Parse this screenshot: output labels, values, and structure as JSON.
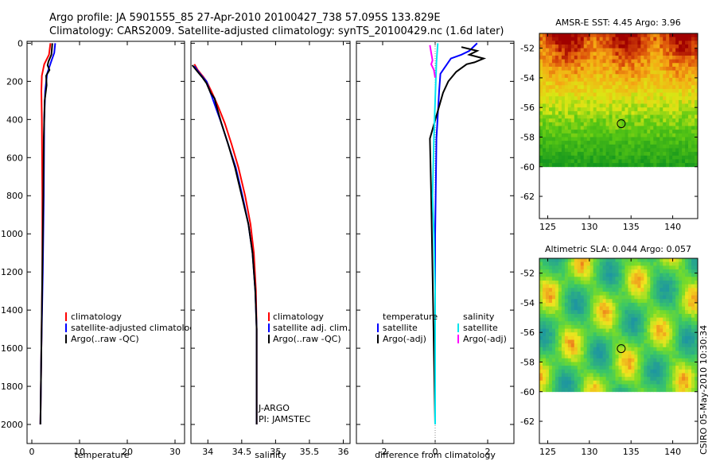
{
  "header": {
    "line1": "Argo profile: JA 5901555_85 27-Apr-2010 20100427_738 57.095S 133.829E",
    "line2": "Climatology: CARS2009. Satellite-adjusted climatology: synTS_20100429.nc (1.6d later)"
  },
  "credit": "CSIRO 05-May-2010 10:30:34",
  "colors": {
    "red": "#ff0000",
    "blue": "#0000ff",
    "black": "#000000",
    "cyan": "#00e5ee",
    "magenta": "#ff00ff"
  },
  "chart_data": [
    {
      "type": "line",
      "id": "temperature",
      "xlabel": "temperature",
      "xlim": [
        -1,
        32
      ],
      "ylim": [
        2100,
        -10
      ],
      "xticks": [
        0,
        10,
        20,
        30
      ],
      "xtick_labels": [
        "0",
        "10",
        "20",
        "30"
      ],
      "yticks": [
        0,
        200,
        400,
        600,
        800,
        1000,
        1200,
        1400,
        1600,
        1800,
        2000
      ],
      "ytick_labels": [
        "0",
        "200",
        "400",
        "600",
        "800",
        "1000",
        "1200",
        "1400",
        "1600",
        "1800",
        "2000"
      ],
      "legend": [
        "climatology",
        "satellite-adjusted climatology",
        "Argo(..raw -QC)"
      ],
      "series": [
        {
          "name": "climatology",
          "color": "red",
          "points": [
            [
              3.9,
              0
            ],
            [
              3.6,
              60
            ],
            [
              2.6,
              110
            ],
            [
              2.1,
              170
            ],
            [
              2.0,
              250
            ],
            [
              2.1,
              400
            ],
            [
              2.2,
              800
            ],
            [
              2.2,
              1200
            ],
            [
              2.0,
              1600
            ],
            [
              1.8,
              2000
            ]
          ]
        },
        {
          "name": "satellite-adjusted climatology",
          "color": "blue",
          "points": [
            [
              4.9,
              0
            ],
            [
              4.7,
              50
            ],
            [
              4.0,
              100
            ],
            [
              3.2,
              160
            ],
            [
              2.8,
              250
            ],
            [
              2.6,
              400
            ],
            [
              2.5,
              800
            ],
            [
              2.3,
              1200
            ],
            [
              2.0,
              1600
            ],
            [
              1.8,
              2000
            ]
          ]
        },
        {
          "name": "Argo(..raw -QC)",
          "color": "black",
          "points": [
            [
              4.3,
              0
            ],
            [
              4.1,
              60
            ],
            [
              3.5,
              95
            ],
            [
              3.3,
              115
            ],
            [
              3.7,
              140
            ],
            [
              3.0,
              170
            ],
            [
              3.1,
              220
            ],
            [
              2.7,
              300
            ],
            [
              2.5,
              500
            ],
            [
              2.4,
              800
            ],
            [
              2.2,
              1200
            ],
            [
              2.0,
              1600
            ],
            [
              1.8,
              2000
            ]
          ]
        }
      ]
    },
    {
      "type": "line",
      "id": "salinity",
      "xlabel": "salinity",
      "xlim": [
        33.75,
        36.1
      ],
      "ylim": [
        2100,
        -10
      ],
      "xticks": [
        34,
        34.5,
        35,
        35.5,
        36
      ],
      "xtick_labels": [
        "34",
        "34.5",
        "35",
        "35.5",
        "36"
      ],
      "legend": [
        "climatology",
        "satellite adj. clim.",
        "Argo(..raw -QC)"
      ],
      "annotations": [
        "J-ARGO",
        "PI: JAMSTEC"
      ],
      "series": [
        {
          "name": "climatology",
          "color": "red",
          "points": [
            [
              33.8,
              110
            ],
            [
              33.85,
              140
            ],
            [
              33.93,
              175
            ],
            [
              33.98,
              200
            ],
            [
              34.05,
              250
            ],
            [
              34.15,
              330
            ],
            [
              34.25,
              420
            ],
            [
              34.35,
              530
            ],
            [
              34.45,
              650
            ],
            [
              34.55,
              800
            ],
            [
              34.63,
              950
            ],
            [
              34.68,
              1100
            ],
            [
              34.71,
              1300
            ],
            [
              34.72,
              1500
            ],
            [
              34.72,
              1700
            ],
            [
              34.72,
              2000
            ]
          ]
        },
        {
          "name": "satellite adj. clim.",
          "color": "blue",
          "points": [
            [
              33.8,
              120
            ],
            [
              33.86,
              150
            ],
            [
              33.93,
              180
            ],
            [
              33.98,
              200
            ],
            [
              34.03,
              250
            ],
            [
              34.11,
              330
            ],
            [
              34.2,
              420
            ],
            [
              34.3,
              530
            ],
            [
              34.41,
              650
            ],
            [
              34.51,
              800
            ],
            [
              34.6,
              950
            ],
            [
              34.66,
              1100
            ],
            [
              34.7,
              1300
            ],
            [
              34.72,
              1500
            ],
            [
              34.72,
              1700
            ],
            [
              34.72,
              2000
            ]
          ]
        },
        {
          "name": "Argo(..raw -QC)",
          "color": "black",
          "points": [
            [
              33.77,
              115
            ],
            [
              33.85,
              150
            ],
            [
              33.92,
              180
            ],
            [
              33.98,
              210
            ],
            [
              34.04,
              260
            ],
            [
              34.1,
              290
            ],
            [
              34.12,
              320
            ],
            [
              34.2,
              420
            ],
            [
              34.3,
              530
            ],
            [
              34.4,
              650
            ],
            [
              34.5,
              800
            ],
            [
              34.6,
              950
            ],
            [
              34.66,
              1100
            ],
            [
              34.7,
              1300
            ],
            [
              34.72,
              1500
            ],
            [
              34.72,
              1700
            ],
            [
              34.72,
              2000
            ]
          ]
        }
      ]
    },
    {
      "type": "line",
      "id": "difference",
      "xlabel": "difference from climatology",
      "xlim": [
        -3,
        3
      ],
      "ylim": [
        2100,
        -10
      ],
      "xticks": [
        -2,
        0,
        2
      ],
      "xtick_labels": [
        "-2",
        "0",
        "2"
      ],
      "legend_headers": [
        "temperature",
        "salinity"
      ],
      "legend": [
        "satellite",
        "Argo(-adj)",
        "satellite",
        "Argo(-adj)"
      ],
      "series": [
        {
          "name": "temperature satellite",
          "color": "blue",
          "points": [
            [
              1.6,
              0
            ],
            [
              1.3,
              40
            ],
            [
              1.0,
              60
            ],
            [
              0.6,
              80
            ],
            [
              0.4,
              120
            ],
            [
              0.2,
              160
            ],
            [
              0.15,
              250
            ],
            [
              0.05,
              500
            ],
            [
              0.0,
              1000
            ],
            [
              0.0,
              2000
            ]
          ]
        },
        {
          "name": "temperature Argo(-adj)",
          "color": "black",
          "points": [
            [
              1.0,
              20
            ],
            [
              1.6,
              40
            ],
            [
              1.3,
              60
            ],
            [
              1.85,
              80
            ],
            [
              1.5,
              100
            ],
            [
              1.2,
              110
            ],
            [
              0.8,
              150
            ],
            [
              0.5,
              200
            ],
            [
              0.3,
              260
            ],
            [
              -0.2,
              500
            ],
            [
              -0.15,
              800
            ],
            [
              -0.1,
              1200
            ],
            [
              0.0,
              2000
            ]
          ]
        },
        {
          "name": "salinity satellite",
          "color": "cyan",
          "points": [
            [
              0.1,
              0
            ],
            [
              0.05,
              100
            ],
            [
              0.0,
              300
            ],
            [
              -0.05,
              500
            ],
            [
              -0.1,
              800
            ],
            [
              -0.05,
              1000
            ],
            [
              0.0,
              1300
            ],
            [
              0.0,
              2000
            ]
          ]
        },
        {
          "name": "salinity Argo(-adj)",
          "color": "magenta",
          "points": [
            [
              -0.2,
              10
            ],
            [
              -0.15,
              50
            ],
            [
              -0.1,
              90
            ],
            [
              -0.15,
              110
            ],
            [
              -0.05,
              140
            ],
            [
              0.0,
              180
            ]
          ]
        }
      ]
    },
    {
      "type": "heatmap",
      "id": "sst_map",
      "title": "AMSR-E SST: 4.45 Argo: 3.96",
      "xlim": [
        124,
        143
      ],
      "ylim": [
        -63.5,
        -51
      ],
      "xticks": [
        125,
        130,
        135,
        140
      ],
      "xtick_labels": [
        "125",
        "130",
        "135",
        "140"
      ],
      "yticks": [
        -52,
        -54,
        -56,
        -58,
        -60,
        -62
      ],
      "ytick_labels": [
        "-52",
        "-54",
        "-56",
        "-58",
        "-60",
        "-62"
      ],
      "data_lat_range": [
        -60,
        -51
      ],
      "marker": {
        "lon": 133.829,
        "lat": -57.095
      }
    },
    {
      "type": "heatmap",
      "id": "sla_map",
      "title": "Altimetric SLA: 0.044 Argo: 0.057",
      "xlim": [
        124,
        143
      ],
      "ylim": [
        -63.5,
        -51
      ],
      "xticks": [
        125,
        130,
        135,
        140
      ],
      "xtick_labels": [
        "125",
        "130",
        "135",
        "140"
      ],
      "yticks": [
        -52,
        -54,
        -56,
        -58,
        -60,
        -62
      ],
      "ytick_labels": [
        "-52",
        "-54",
        "-56",
        "-58",
        "-60",
        "-62"
      ],
      "data_lat_range": [
        -60,
        -51
      ],
      "marker": {
        "lon": 133.829,
        "lat": -57.095
      }
    }
  ]
}
